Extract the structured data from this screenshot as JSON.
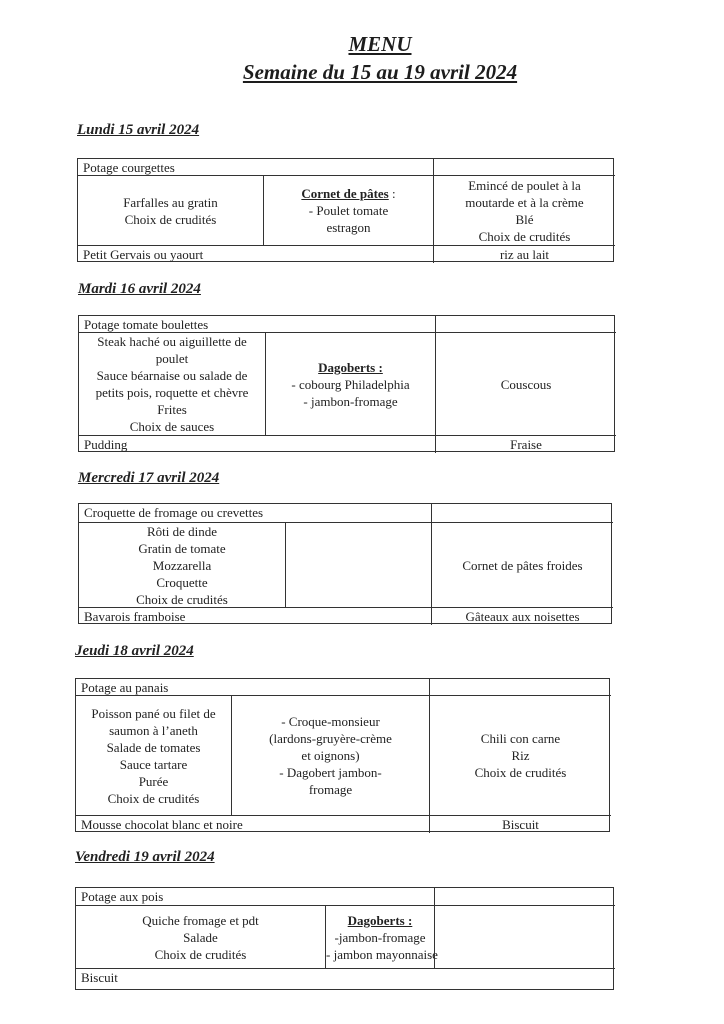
{
  "header": {
    "title": "MENU",
    "subtitle": "Semaine du 15 au 19 avril 2024"
  },
  "days": [
    {
      "title": "Lundi 15 avril 2024",
      "soup": "Potage courgettes",
      "col1": [
        "Farfalles au gratin",
        "Choix de crudités"
      ],
      "col2": [
        {
          "text": "Cornet de pâtes",
          "suffix": " :",
          "head": true
        },
        {
          "text": "-   Poulet tomate"
        },
        {
          "text": "estragon"
        }
      ],
      "col3": [
        "Emincé de poulet à la",
        "moutarde et à la crème",
        "Blé",
        "Choix de crudités"
      ],
      "dessert_left": "Petit Gervais ou yaourt",
      "dessert_right": "riz au lait"
    },
    {
      "title": "Mardi 16 avril 2024",
      "soup": "Potage tomate boulettes",
      "col1": [
        "Steak haché ou aiguillette de",
        "poulet",
        "Sauce béarnaise ou salade de",
        "petits pois, roquette et chèvre",
        "Frites",
        "Choix de sauces"
      ],
      "col2": [
        {
          "text": "Dagoberts :",
          "head": true
        },
        {
          "text": "- cobourg Philadelphia"
        },
        {
          "text": "- jambon-fromage"
        }
      ],
      "col3": [
        "Couscous"
      ],
      "dessert_left": "Pudding",
      "dessert_right": "Fraise"
    },
    {
      "title": "Mercredi 17 avril 2024",
      "soup": "Croquette de fromage ou crevettes",
      "col1": [
        "Rôti de dinde",
        "Gratin de tomate",
        "Mozzarella",
        "Croquette",
        "Choix de crudités"
      ],
      "col2": [],
      "col3": [
        "Cornet de pâtes froides"
      ],
      "dessert_left": "Bavarois framboise",
      "dessert_right": "Gâteaux aux noisettes"
    },
    {
      "title": "Jeudi 18 avril 2024",
      "soup": "Potage au panais",
      "col1": [
        "Poisson pané ou filet de",
        "saumon à l’aneth",
        "Salade de tomates",
        "Sauce tartare",
        "Purée",
        "Choix de crudités"
      ],
      "col2": [
        {
          "text": "-    Croque-monsieur"
        },
        {
          "text": "(lardons-gruyère-crème"
        },
        {
          "text": "et oignons)"
        },
        {
          "text": "-    Dagobert jambon-"
        },
        {
          "text": "fromage"
        }
      ],
      "col3": [
        "Chili con carne",
        "Riz",
        "Choix de crudités"
      ],
      "dessert_left": "Mousse chocolat blanc et noire",
      "dessert_right": "Biscuit"
    },
    {
      "title": "Vendredi 19 avril 2024",
      "soup": "Potage aux pois",
      "col1": [
        "Quiche fromage et pdt",
        "Salade",
        "Choix de crudités"
      ],
      "col2": [
        {
          "text": "Dagoberts :",
          "head": true
        },
        {
          "text": "-jambon-fromage"
        },
        {
          "text": "- jambon mayonnaise"
        }
      ],
      "col3": [],
      "dessert_left": "Biscuit",
      "dessert_right": null
    }
  ]
}
